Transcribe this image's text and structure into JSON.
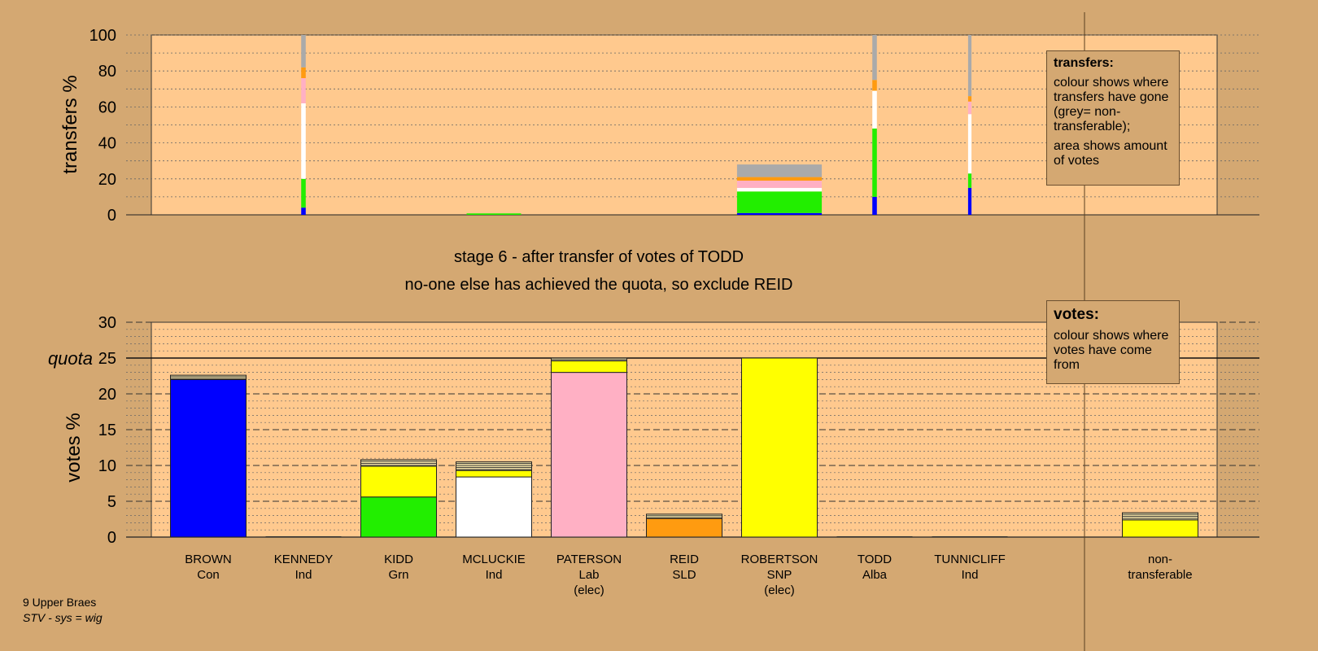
{
  "stage": {
    "line1": "stage 6 - after transfer of votes of TODD",
    "line2": "no-one else has achieved the quota, so exclude REID"
  },
  "footer": {
    "line1": "9 Upper Braes",
    "line2": "STV - sys = wig"
  },
  "info_boxes": {
    "transfers": {
      "title": "transfers:",
      "p1": "colour shows where transfers have gone (grey= non-transferable);",
      "p2": "area shows amount of votes"
    },
    "votes": {
      "title": "votes:",
      "p1": "colour shows where votes have come from"
    }
  },
  "colors": {
    "background": "#D4A872",
    "plot_area": "#FFC98E",
    "Con": "#0000FF",
    "Grn": "#22EE00",
    "Ind_MCLUCKIE": "#FFFFFF",
    "Lab": "#FFB0C4",
    "SLD": "#FF9B10",
    "SNP": "#FFFF00",
    "non_transferable": "#AAAAAA",
    "dark": "#333333"
  },
  "chart_data": [
    {
      "type": "bar",
      "stacked": true,
      "ylabel": "transfers %",
      "ylim": [
        0,
        100
      ],
      "yticks": [
        0,
        20,
        40,
        60,
        80,
        100
      ],
      "grid": true,
      "categories": [
        "BROWN",
        "KENNEDY",
        "KIDD",
        "MCLUCKIE",
        "PATERSON",
        "REID",
        "ROBERTSON",
        "TODD",
        "TUNNICLIFF"
      ],
      "bars": [
        {
          "category": "KENNEDY",
          "width_share": 0.04,
          "segments": [
            {
              "to": "BROWN",
              "value": 4
            },
            {
              "to": "KIDD",
              "value": 16
            },
            {
              "to": "MCLUCKIE",
              "value": 42
            },
            {
              "to": "PATERSON",
              "value": 14
            },
            {
              "to": "REID",
              "value": 6
            },
            {
              "to": "non-transferable",
              "value": 18
            }
          ]
        },
        {
          "category": "MCLUCKIE",
          "width_share": 0.72,
          "segments": [
            {
              "to": "KIDD",
              "value": 0.8
            }
          ]
        },
        {
          "category": "ROBERTSON",
          "width_share": 1.12,
          "segments": [
            {
              "to": "BROWN",
              "value": 1
            },
            {
              "to": "KIDD",
              "value": 12
            },
            {
              "to": "MCLUCKIE",
              "value": 2
            },
            {
              "to": "PATERSON",
              "value": 4
            },
            {
              "to": "REID",
              "value": 2
            },
            {
              "to": "non-transferable",
              "value": 7
            }
          ]
        },
        {
          "category": "TODD",
          "width_share": 0.04,
          "segments": [
            {
              "to": "BROWN",
              "value": 10
            },
            {
              "to": "KIDD",
              "value": 38
            },
            {
              "to": "MCLUCKIE",
              "value": 21
            },
            {
              "to": "REID",
              "value": 6
            },
            {
              "to": "non-transferable",
              "value": 25
            }
          ]
        },
        {
          "category": "TUNNICLIFF",
          "width_share": 0.03,
          "segments": [
            {
              "to": "BROWN",
              "value": 15
            },
            {
              "to": "KIDD",
              "value": 8
            },
            {
              "to": "MCLUCKIE",
              "value": 33
            },
            {
              "to": "PATERSON",
              "value": 7
            },
            {
              "to": "REID",
              "value": 3
            },
            {
              "to": "non-transferable",
              "value": 34
            }
          ]
        }
      ]
    },
    {
      "type": "bar",
      "stacked": true,
      "ylabel": "votes %",
      "ylim": [
        0,
        30
      ],
      "yticks": [
        0,
        5,
        10,
        15,
        20,
        25,
        30
      ],
      "quota": {
        "label": "quota",
        "value": 25
      },
      "grid": true,
      "candidates": [
        {
          "name": "BROWN",
          "party": "Con",
          "status": "",
          "segments": [
            {
              "from": "Con",
              "value": 22
            },
            {
              "from": "other",
              "value": 0.6
            }
          ]
        },
        {
          "name": "KENNEDY",
          "party": "Ind",
          "status": "",
          "segments": []
        },
        {
          "name": "KIDD",
          "party": "Grn",
          "status": "",
          "segments": [
            {
              "from": "Grn",
              "value": 5.6
            },
            {
              "from": "SNP",
              "value": 4.3
            },
            {
              "from": "other",
              "value": 0.9
            }
          ]
        },
        {
          "name": "MCLUCKIE",
          "party": "Ind",
          "status": "",
          "segments": [
            {
              "from": "Ind",
              "value": 8.4
            },
            {
              "from": "SNP",
              "value": 0.9
            },
            {
              "from": "other",
              "value": 1.2
            }
          ]
        },
        {
          "name": "PATERSON",
          "party": "Lab",
          "status": "(elec)",
          "segments": [
            {
              "from": "Lab",
              "value": 23
            },
            {
              "from": "SNP",
              "value": 1.6
            },
            {
              "from": "other",
              "value": 0.4
            }
          ]
        },
        {
          "name": "REID",
          "party": "SLD",
          "status": "",
          "segments": [
            {
              "from": "SLD",
              "value": 2.6
            },
            {
              "from": "other",
              "value": 0.6
            }
          ]
        },
        {
          "name": "ROBERTSON",
          "party": "SNP",
          "status": "(elec)",
          "segments": [
            {
              "from": "SNP",
              "value": 25
            }
          ]
        },
        {
          "name": "TODD",
          "party": "Alba",
          "status": "",
          "segments": []
        },
        {
          "name": "TUNNICLIFF",
          "party": "Ind",
          "status": "",
          "segments": []
        },
        {
          "name": "non-",
          "party": "transferable",
          "status": "",
          "segments": [
            {
              "from": "SNP",
              "value": 2.4
            },
            {
              "from": "other",
              "value": 1.0
            }
          ]
        }
      ]
    }
  ]
}
